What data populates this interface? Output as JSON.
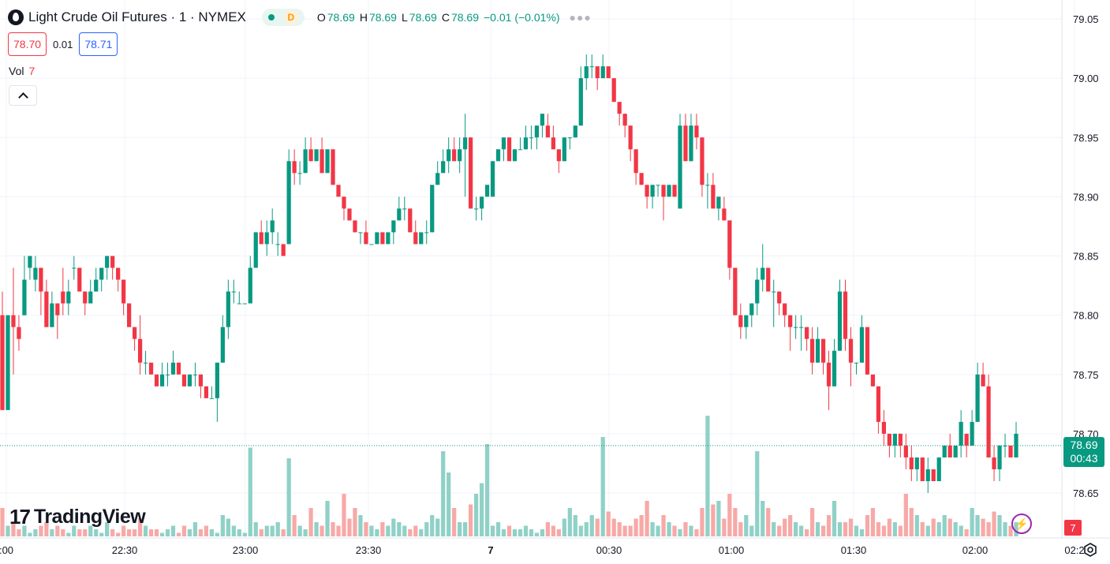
{
  "header": {
    "symbol_title": "Light Crude Oil Futures · 1 · NYMEX",
    "status_letter": "D",
    "ohlc": {
      "o_label": "O",
      "o": "78.69",
      "h_label": "H",
      "h": "78.69",
      "l_label": "L",
      "l": "78.69",
      "c_label": "C",
      "c": "78.69",
      "change": "−0.01 (−0.01%)"
    },
    "more_icon": "more-dots-icon"
  },
  "trade": {
    "sell_price": "78.70",
    "spread": "0.01",
    "buy_price": "78.71"
  },
  "volume_legend": {
    "label": "Vol",
    "value": "7"
  },
  "branding": {
    "logo_text": "TradingView"
  },
  "price_axis": {
    "ticks": [
      "79.05",
      "79.00",
      "78.95",
      "78.90",
      "78.85",
      "78.80",
      "78.75",
      "78.70",
      "78.65"
    ]
  },
  "time_axis": {
    "ticks": [
      ":00",
      "22:30",
      "23:00",
      "23:30",
      "7",
      "00:30",
      "01:00",
      "01:30",
      "02:00",
      "02:2"
    ]
  },
  "current_price": {
    "price": "78.69",
    "countdown": "00:43"
  },
  "volume_badge": "7",
  "colors": {
    "up": "#089981",
    "down": "#f23645",
    "up_vol": "#8fd1c7",
    "down_vol": "#f7a9a7"
  },
  "chart_data": {
    "type": "candlestick",
    "ylim": [
      78.625,
      79.075
    ],
    "last_price": 78.69,
    "candles": [
      [
        78.8,
        78.82,
        78.72,
        78.72
      ],
      [
        78.72,
        78.8,
        78.72,
        78.8
      ],
      [
        78.8,
        78.84,
        78.75,
        78.79
      ],
      [
        78.79,
        78.8,
        78.77,
        78.78
      ],
      [
        78.8,
        78.85,
        78.8,
        78.83
      ],
      [
        78.84,
        78.85,
        78.83,
        78.85
      ],
      [
        78.83,
        78.85,
        78.82,
        78.84
      ],
      [
        78.84,
        78.84,
        78.8,
        78.82
      ],
      [
        78.82,
        78.83,
        78.79,
        78.79
      ],
      [
        78.79,
        78.82,
        78.79,
        78.81
      ],
      [
        78.81,
        78.81,
        78.78,
        78.8
      ],
      [
        78.82,
        78.84,
        78.8,
        78.81
      ],
      [
        78.81,
        78.83,
        78.8,
        78.82
      ],
      [
        78.84,
        78.85,
        78.83,
        78.84
      ],
      [
        78.84,
        78.84,
        78.82,
        78.82
      ],
      [
        78.82,
        78.82,
        78.8,
        78.81
      ],
      [
        78.81,
        78.83,
        78.81,
        78.82
      ],
      [
        78.82,
        78.84,
        78.82,
        78.83
      ],
      [
        78.83,
        78.84,
        78.82,
        78.84
      ],
      [
        78.84,
        78.85,
        78.83,
        78.85
      ],
      [
        78.85,
        78.85,
        78.83,
        78.84
      ],
      [
        78.84,
        78.84,
        78.82,
        78.83
      ],
      [
        78.83,
        78.83,
        78.8,
        78.81
      ],
      [
        78.81,
        78.81,
        78.79,
        78.79
      ],
      [
        78.79,
        78.79,
        78.77,
        78.78
      ],
      [
        78.78,
        78.8,
        78.75,
        78.76
      ],
      [
        78.76,
        78.77,
        78.75,
        78.76
      ],
      [
        78.76,
        78.76,
        78.75,
        78.75
      ],
      [
        78.75,
        78.75,
        78.74,
        78.74
      ],
      [
        78.74,
        78.76,
        78.74,
        78.75
      ],
      [
        78.75,
        78.76,
        78.74,
        78.75
      ],
      [
        78.75,
        78.77,
        78.75,
        78.76
      ],
      [
        78.76,
        78.76,
        78.75,
        78.75
      ],
      [
        78.75,
        78.75,
        78.74,
        78.74
      ],
      [
        78.74,
        78.75,
        78.74,
        78.75
      ],
      [
        78.75,
        78.76,
        78.74,
        78.75
      ],
      [
        78.75,
        78.75,
        78.73,
        78.74
      ],
      [
        78.74,
        78.74,
        78.73,
        78.73
      ],
      [
        78.73,
        78.74,
        78.73,
        78.73
      ],
      [
        78.73,
        78.76,
        78.71,
        78.76
      ],
      [
        78.76,
        78.8,
        78.76,
        78.79
      ],
      [
        78.79,
        78.83,
        78.78,
        78.82
      ],
      [
        78.82,
        78.83,
        78.81,
        78.82
      ],
      [
        78.81,
        78.82,
        78.81,
        78.81
      ],
      [
        78.81,
        78.81,
        78.81,
        78.81
      ],
      [
        78.81,
        78.85,
        78.81,
        78.84
      ],
      [
        78.84,
        78.87,
        78.84,
        78.87
      ],
      [
        78.87,
        78.88,
        78.86,
        78.86
      ],
      [
        78.86,
        78.88,
        78.85,
        78.87
      ],
      [
        78.87,
        78.89,
        78.86,
        78.88
      ],
      [
        78.86,
        78.87,
        78.85,
        78.86
      ],
      [
        78.86,
        78.86,
        78.85,
        78.85
      ],
      [
        78.86,
        78.94,
        78.86,
        78.93
      ],
      [
        78.93,
        78.94,
        78.91,
        78.92
      ],
      [
        78.92,
        78.93,
        78.91,
        78.92
      ],
      [
        78.92,
        78.95,
        78.92,
        78.94
      ],
      [
        78.94,
        78.95,
        78.93,
        78.93
      ],
      [
        78.93,
        78.94,
        78.93,
        78.94
      ],
      [
        78.94,
        78.95,
        78.92,
        78.92
      ],
      [
        78.92,
        78.94,
        78.92,
        78.94
      ],
      [
        78.94,
        78.94,
        78.91,
        78.91
      ],
      [
        78.91,
        78.91,
        78.9,
        78.9
      ],
      [
        78.9,
        78.9,
        78.88,
        78.89
      ],
      [
        78.89,
        78.89,
        78.88,
        78.88
      ],
      [
        78.88,
        78.88,
        78.87,
        78.87
      ],
      [
        78.87,
        78.87,
        78.86,
        78.87
      ],
      [
        78.87,
        78.88,
        78.86,
        78.86
      ],
      [
        78.86,
        78.86,
        78.86,
        78.86
      ],
      [
        78.86,
        78.87,
        78.86,
        78.87
      ],
      [
        78.87,
        78.87,
        78.86,
        78.86
      ],
      [
        78.86,
        78.87,
        78.86,
        78.87
      ],
      [
        78.87,
        78.88,
        78.86,
        78.88
      ],
      [
        78.88,
        78.9,
        78.88,
        78.89
      ],
      [
        78.89,
        78.9,
        78.88,
        78.89
      ],
      [
        78.89,
        78.89,
        78.87,
        78.87
      ],
      [
        78.87,
        78.88,
        78.86,
        78.86
      ],
      [
        78.86,
        78.87,
        78.86,
        78.87
      ],
      [
        78.87,
        78.88,
        78.86,
        78.87
      ],
      [
        78.87,
        78.91,
        78.87,
        78.91
      ],
      [
        78.91,
        78.93,
        78.91,
        78.92
      ],
      [
        78.92,
        78.94,
        78.92,
        78.93
      ],
      [
        78.93,
        78.95,
        78.92,
        78.94
      ],
      [
        78.94,
        78.95,
        78.93,
        78.93
      ],
      [
        78.93,
        78.95,
        78.92,
        78.94
      ],
      [
        78.94,
        78.97,
        78.9,
        78.95
      ],
      [
        78.95,
        78.95,
        78.89,
        78.89
      ],
      [
        78.89,
        78.9,
        78.88,
        78.89
      ],
      [
        78.89,
        78.9,
        78.88,
        78.9
      ],
      [
        78.9,
        78.91,
        78.9,
        78.91
      ],
      [
        78.9,
        78.93,
        78.9,
        78.93
      ],
      [
        78.93,
        78.94,
        78.93,
        78.94
      ],
      [
        78.94,
        78.95,
        78.93,
        78.95
      ],
      [
        78.95,
        78.95,
        78.93,
        78.93
      ],
      [
        78.93,
        78.94,
        78.93,
        78.94
      ],
      [
        78.94,
        78.95,
        78.94,
        78.94
      ],
      [
        78.94,
        78.96,
        78.94,
        78.95
      ],
      [
        78.95,
        78.96,
        78.94,
        78.95
      ],
      [
        78.95,
        78.96,
        78.94,
        78.96
      ],
      [
        78.96,
        78.97,
        78.95,
        78.97
      ],
      [
        78.96,
        78.97,
        78.95,
        78.95
      ],
      [
        78.95,
        78.96,
        78.94,
        78.94
      ],
      [
        78.94,
        78.94,
        78.92,
        78.93
      ],
      [
        78.93,
        78.95,
        78.93,
        78.95
      ],
      [
        78.95,
        78.95,
        78.94,
        78.95
      ],
      [
        78.95,
        78.96,
        78.95,
        78.96
      ],
      [
        78.96,
        79.01,
        78.96,
        79.0
      ],
      [
        79.0,
        79.02,
        78.99,
        79.01
      ],
      [
        79.01,
        79.02,
        79.0,
        79.01
      ],
      [
        79.01,
        79.01,
        78.99,
        79.0
      ],
      [
        79.0,
        79.02,
        79.0,
        79.01
      ],
      [
        79.01,
        79.01,
        79.0,
        79.0
      ],
      [
        79.0,
        79.0,
        78.98,
        78.98
      ],
      [
        78.98,
        78.98,
        78.96,
        78.97
      ],
      [
        78.97,
        78.97,
        78.95,
        78.96
      ],
      [
        78.96,
        78.96,
        78.93,
        78.94
      ],
      [
        78.94,
        78.94,
        78.91,
        78.92
      ],
      [
        78.92,
        78.92,
        78.91,
        78.91
      ],
      [
        78.91,
        78.91,
        78.89,
        78.9
      ],
      [
        78.9,
        78.91,
        78.89,
        78.91
      ],
      [
        78.91,
        78.91,
        78.9,
        78.91
      ],
      [
        78.91,
        78.91,
        78.88,
        78.9
      ],
      [
        78.9,
        78.91,
        78.9,
        78.91
      ],
      [
        78.91,
        78.91,
        78.9,
        78.9
      ],
      [
        78.89,
        78.97,
        78.89,
        78.96
      ],
      [
        78.96,
        78.97,
        78.93,
        78.93
      ],
      [
        78.93,
        78.97,
        78.93,
        78.96
      ],
      [
        78.96,
        78.97,
        78.94,
        78.95
      ],
      [
        78.95,
        78.95,
        78.9,
        78.91
      ],
      [
        78.91,
        78.92,
        78.89,
        78.91
      ],
      [
        78.91,
        78.92,
        78.89,
        78.89
      ],
      [
        78.89,
        78.9,
        78.88,
        78.9
      ],
      [
        78.89,
        78.9,
        78.88,
        78.88
      ],
      [
        78.88,
        78.88,
        78.83,
        78.84
      ],
      [
        78.84,
        78.84,
        78.8,
        78.8
      ],
      [
        78.8,
        78.81,
        78.78,
        78.79
      ],
      [
        78.79,
        78.8,
        78.78,
        78.8
      ],
      [
        78.8,
        78.81,
        78.79,
        78.81
      ],
      [
        78.81,
        78.84,
        78.8,
        78.83
      ],
      [
        78.83,
        78.86,
        78.82,
        78.84
      ],
      [
        78.84,
        78.84,
        78.82,
        78.82
      ],
      [
        78.82,
        78.83,
        78.79,
        78.82
      ],
      [
        78.82,
        78.82,
        78.8,
        78.81
      ],
      [
        78.81,
        78.81,
        78.79,
        78.8
      ],
      [
        78.8,
        78.8,
        78.77,
        78.79
      ],
      [
        78.79,
        78.8,
        78.78,
        78.79
      ],
      [
        78.79,
        78.8,
        78.77,
        78.79
      ],
      [
        78.79,
        78.79,
        78.77,
        78.78
      ],
      [
        78.78,
        78.79,
        78.75,
        78.76
      ],
      [
        78.76,
        78.79,
        78.76,
        78.78
      ],
      [
        78.78,
        78.78,
        78.75,
        78.76
      ],
      [
        78.76,
        78.77,
        78.72,
        78.74
      ],
      [
        78.74,
        78.78,
        78.74,
        78.77
      ],
      [
        78.77,
        78.83,
        78.77,
        78.82
      ],
      [
        78.82,
        78.83,
        78.77,
        78.78
      ],
      [
        78.78,
        78.79,
        78.74,
        78.76
      ],
      [
        78.76,
        78.76,
        78.75,
        78.76
      ],
      [
        78.76,
        78.8,
        78.76,
        78.79
      ],
      [
        78.79,
        78.79,
        78.75,
        78.75
      ],
      [
        78.75,
        78.75,
        78.74,
        78.74
      ],
      [
        78.74,
        78.74,
        78.7,
        78.71
      ],
      [
        78.71,
        78.72,
        78.69,
        78.7
      ],
      [
        78.7,
        78.7,
        78.68,
        78.69
      ],
      [
        78.69,
        78.7,
        78.68,
        78.7
      ],
      [
        78.7,
        78.7,
        78.68,
        78.69
      ],
      [
        78.69,
        78.7,
        78.67,
        78.68
      ],
      [
        78.68,
        78.69,
        78.66,
        78.67
      ],
      [
        78.67,
        78.68,
        78.66,
        78.68
      ],
      [
        78.68,
        78.68,
        78.66,
        78.66
      ],
      [
        78.66,
        78.68,
        78.65,
        78.67
      ],
      [
        78.67,
        78.67,
        78.66,
        78.66
      ],
      [
        78.66,
        78.68,
        78.66,
        78.68
      ],
      [
        78.68,
        78.69,
        78.68,
        78.69
      ],
      [
        78.69,
        78.7,
        78.68,
        78.68
      ],
      [
        78.68,
        78.69,
        78.68,
        78.69
      ],
      [
        78.69,
        78.72,
        78.68,
        78.71
      ],
      [
        78.7,
        78.7,
        78.68,
        78.69
      ],
      [
        78.69,
        78.72,
        78.69,
        78.71
      ],
      [
        78.71,
        78.76,
        78.71,
        78.75
      ],
      [
        78.75,
        78.76,
        78.74,
        78.74
      ],
      [
        78.74,
        78.75,
        78.68,
        78.68
      ],
      [
        78.68,
        78.69,
        78.66,
        78.67
      ],
      [
        78.67,
        78.69,
        78.66,
        78.69
      ],
      [
        78.69,
        78.7,
        78.68,
        78.69
      ],
      [
        78.69,
        78.69,
        78.68,
        78.68
      ],
      [
        78.68,
        78.71,
        78.68,
        78.7
      ]
    ],
    "volumes": [
      8,
      3,
      4,
      2,
      3,
      1,
      2,
      3,
      4,
      2,
      3,
      2,
      1,
      3,
      2,
      2,
      3,
      2,
      1,
      4,
      2,
      1,
      3,
      2,
      2,
      5,
      3,
      2,
      2,
      1,
      2,
      3,
      1,
      3,
      2,
      4,
      2,
      3,
      2,
      1,
      6,
      5,
      3,
      2,
      1,
      25,
      4,
      2,
      3,
      3,
      4,
      2,
      22,
      6,
      3,
      2,
      8,
      4,
      3,
      10,
      4,
      3,
      12,
      5,
      8,
      6,
      4,
      3,
      2,
      4,
      3,
      5,
      4,
      3,
      2,
      3,
      2,
      4,
      6,
      5,
      24,
      18,
      8,
      4,
      4,
      9,
      12,
      15,
      26,
      3,
      4,
      2,
      3,
      2,
      2,
      3,
      2,
      1,
      2,
      4,
      3,
      2,
      5,
      8,
      6,
      3,
      4,
      6,
      5,
      28,
      7,
      5,
      4,
      3,
      3,
      5,
      6,
      10,
      4,
      3,
      6,
      4,
      3,
      2,
      4,
      3,
      2,
      8,
      34,
      9,
      10,
      5,
      12,
      8,
      4,
      6,
      3,
      24,
      10,
      8,
      4,
      3,
      5,
      6,
      4,
      3,
      2,
      8,
      4,
      3,
      6,
      10,
      4,
      4,
      5,
      3,
      2,
      6,
      8,
      4,
      3,
      5,
      4,
      3,
      12,
      8,
      6,
      4,
      3,
      5,
      4,
      6,
      5,
      4,
      3,
      2,
      8,
      6,
      5,
      4,
      7,
      6,
      4,
      3,
      4,
      2,
      3,
      1
    ],
    "volume_max": 40
  }
}
